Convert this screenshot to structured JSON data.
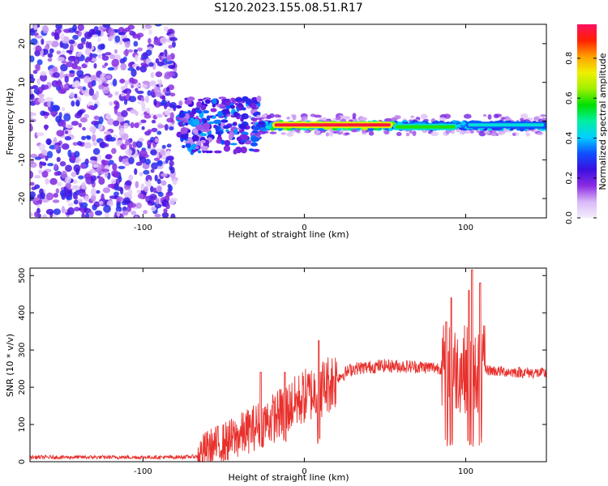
{
  "title": "S120.2023.155.08.51.R17",
  "chart_data": [
    {
      "type": "heatmap",
      "xlabel": "Height of straight line (km)",
      "ylabel": "Frequency (Hz)",
      "xlim": [
        -170,
        150
      ],
      "ylim": [
        -25,
        25
      ],
      "xticks": [
        -100,
        0,
        100
      ],
      "yticks": [
        -20,
        -10,
        0,
        10,
        20
      ],
      "colorbar": {
        "label": "Normalized spectral amplitude",
        "range": [
          0,
          0.97
        ],
        "ticks": [
          0.0,
          0.2,
          0.4,
          0.6,
          0.8
        ],
        "colors": [
          "#f4eefc",
          "#d9b8f7",
          "#8a2be2",
          "#3a10e0",
          "#1050ff",
          "#00d0ff",
          "#00f0a0",
          "#00e000",
          "#a0f000",
          "#f0f000",
          "#ffa000",
          "#ff2000",
          "#ff1060"
        ]
      },
      "features": {
        "noise_region_x": [
          -170,
          -80
        ],
        "ridge_segments": [
          {
            "x": [
              -20,
              55
            ],
            "y": -1,
            "amplitude": 0.97
          },
          {
            "x": [
              55,
              95
            ],
            "y": -1.5,
            "amplitude": 0.6
          },
          {
            "x": [
              100,
              150
            ],
            "y": -1,
            "amplitude": 0.45
          }
        ]
      }
    },
    {
      "type": "line",
      "xlabel": "Height of straight line (km)",
      "ylabel": "SNR (10 * v/v)",
      "xlim": [
        -170,
        150
      ],
      "ylim": [
        0,
        520
      ],
      "xticks": [
        -100,
        0,
        100
      ],
      "yticks": [
        0,
        100,
        200,
        300,
        400,
        500
      ],
      "color": "#e8302c",
      "series_profile": {
        "x": [
          -170,
          -80,
          -66,
          -60,
          -50,
          -40,
          -30,
          -20,
          -10,
          0,
          10,
          20,
          30,
          50,
          70,
          85,
          95,
          100,
          105,
          110,
          120,
          135,
          150
        ],
        "y": [
          12,
          12,
          14,
          35,
          50,
          70,
          95,
          115,
          145,
          175,
          195,
          225,
          250,
          258,
          255,
          252,
          250,
          250,
          245,
          248,
          243,
          240,
          237
        ]
      },
      "peaks": [
        {
          "x": -27,
          "y": 240
        },
        {
          "x": -12,
          "y": 240
        },
        {
          "x": 9,
          "y": 325
        },
        {
          "x": 88,
          "y": 375
        },
        {
          "x": 91,
          "y": 440
        },
        {
          "x": 102,
          "y": 460
        },
        {
          "x": 104,
          "y": 515
        },
        {
          "x": 109,
          "y": 480
        }
      ]
    }
  ]
}
